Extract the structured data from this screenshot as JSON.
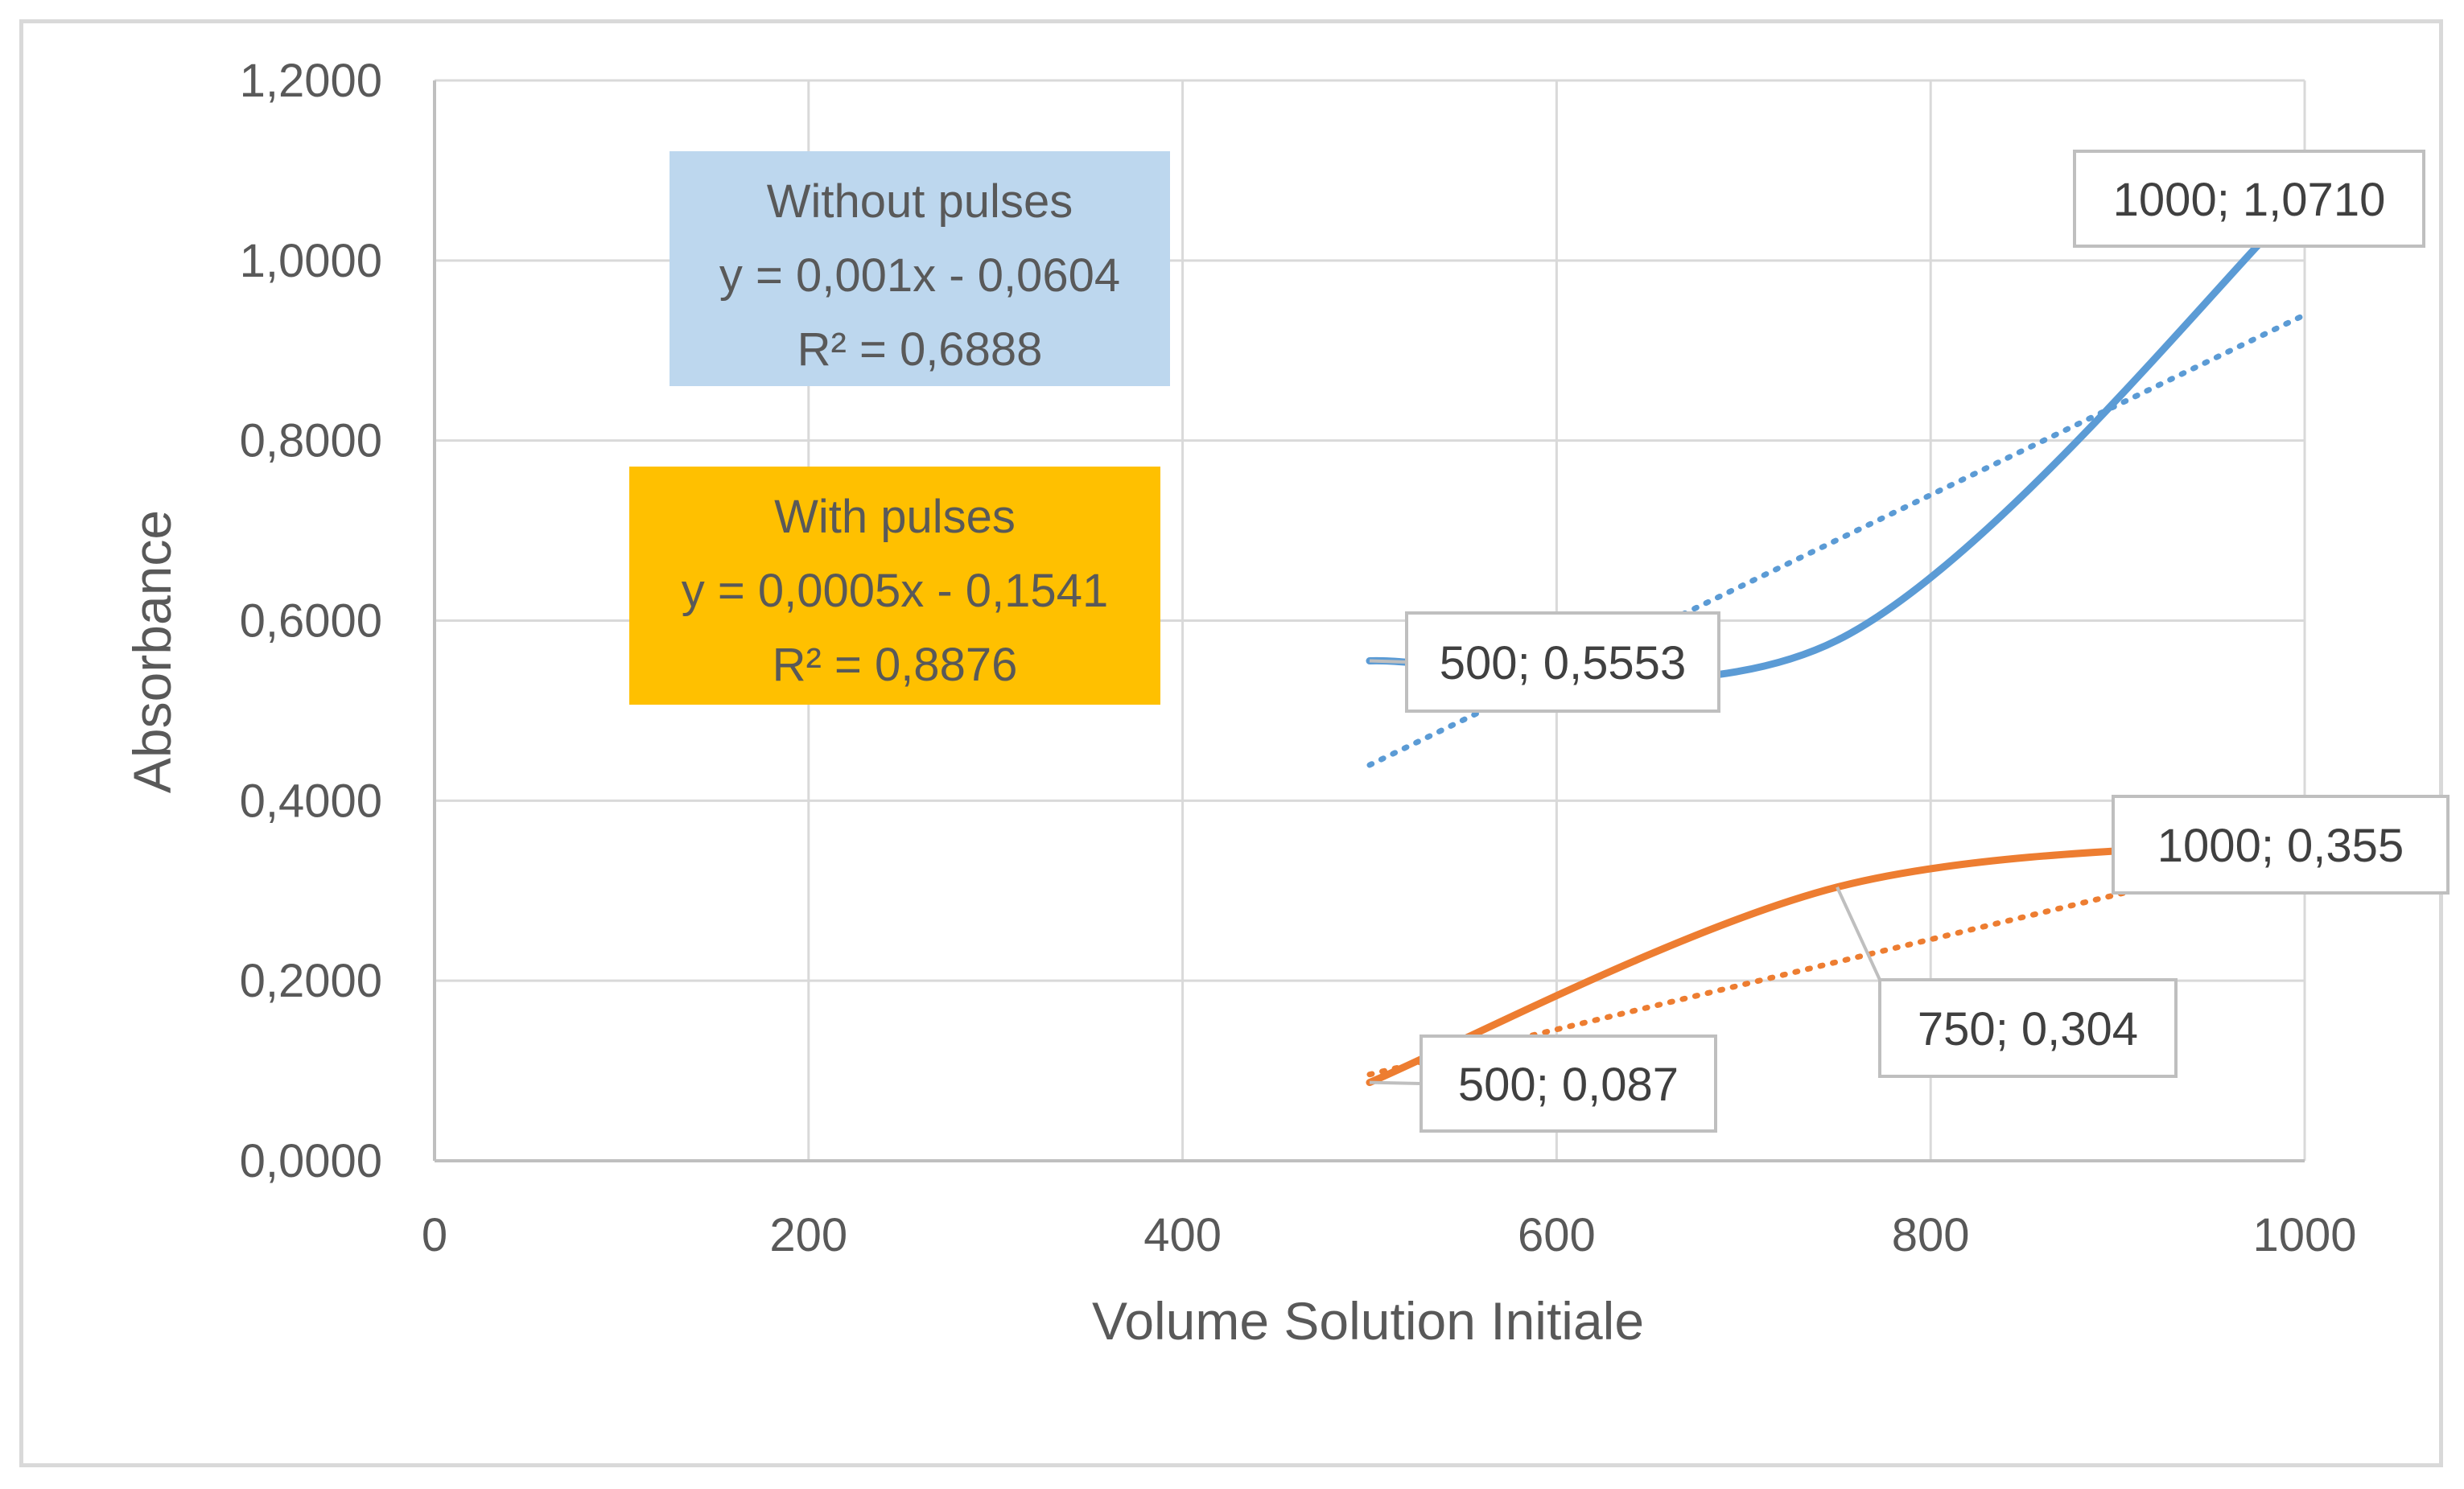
{
  "chart_data": {
    "type": "line",
    "xlabel": "Volume Solution Initiale",
    "ylabel": "Absorbance",
    "xlim": [
      0,
      1000
    ],
    "ylim": [
      0,
      1.2
    ],
    "x_ticks": [
      "0",
      "200",
      "400",
      "600",
      "800",
      "1000"
    ],
    "y_ticks": [
      "0,0000",
      "0,2000",
      "0,4000",
      "0,6000",
      "0,8000",
      "1,0000",
      "1,2000"
    ],
    "grid": true,
    "x": [
      500,
      750,
      1000
    ],
    "series": [
      {
        "name": "Without pulses",
        "color": "#5b9bd5",
        "values": [
          0.5553,
          0.5781,
          1.071
        ],
        "trendline": {
          "slope": 0.001,
          "intercept": -0.0604
        },
        "equation": "y = 0,001x - 0,0604",
        "r2": "R² = 0,6888",
        "point_labels": [
          {
            "x": 500,
            "text": "500; 0,5553"
          },
          {
            "x": 1000,
            "text": "1000; 1,0710"
          }
        ]
      },
      {
        "name": "With pulses",
        "color": "#ed7d31",
        "values": [
          0.087,
          0.304,
          0.355
        ],
        "trendline": {
          "slope": 0.0005,
          "intercept": -0.1541
        },
        "equation": "y = 0,0005x - 0,1541",
        "r2": "R² = 0,8876",
        "point_labels": [
          {
            "x": 500,
            "text": "500; 0,087"
          },
          {
            "x": 750,
            "text": "750; 0,304"
          },
          {
            "x": 1000,
            "text": "1000; 0,355"
          }
        ]
      }
    ],
    "equation_box_colors": [
      "#bdd7ee",
      "#ffc000"
    ]
  }
}
